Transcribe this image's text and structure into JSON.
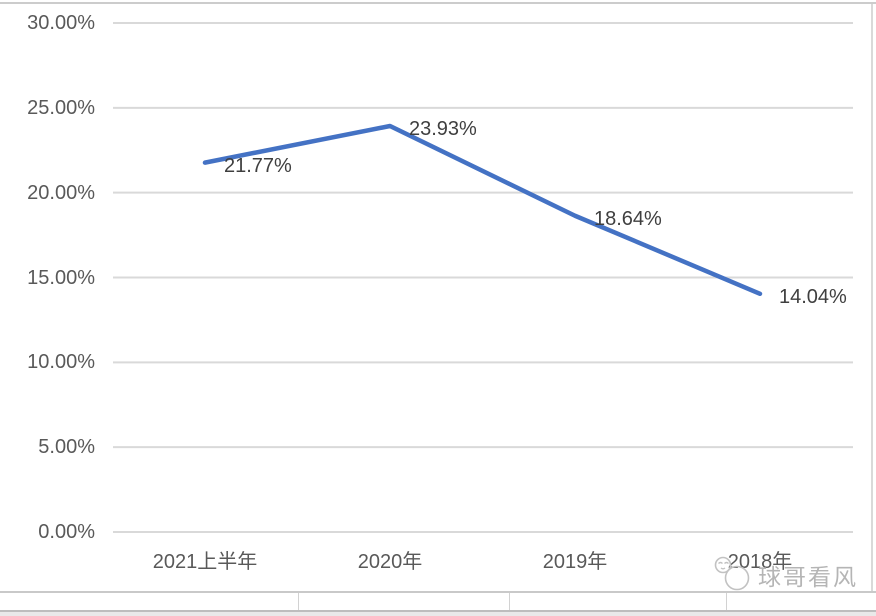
{
  "chart_data": {
    "type": "line",
    "title": "",
    "xlabel": "",
    "ylabel": "",
    "categories": [
      "2021上半年",
      "2020年",
      "2019年",
      "2018年"
    ],
    "values": [
      21.77,
      23.93,
      18.64,
      14.04
    ],
    "data_labels": [
      "21.77%",
      "23.93%",
      "18.64%",
      "14.04%"
    ],
    "ytick_labels": [
      "30.00%",
      "25.00%",
      "20.00%",
      "15.00%",
      "10.00%",
      "5.00%",
      "0.00%"
    ],
    "ytick_values": [
      30,
      25,
      20,
      15,
      10,
      5,
      0
    ],
    "ylim": [
      0,
      30
    ],
    "ytick_step": 5,
    "grid": true,
    "legend": "none",
    "line_color": "#4472C4",
    "gridline_color": "#d9d9d9",
    "axis_label_color": "#595959",
    "data_label_color": "#3f3f3f"
  },
  "watermark": {
    "text": "球哥看风",
    "color": "#b5b5b5"
  }
}
